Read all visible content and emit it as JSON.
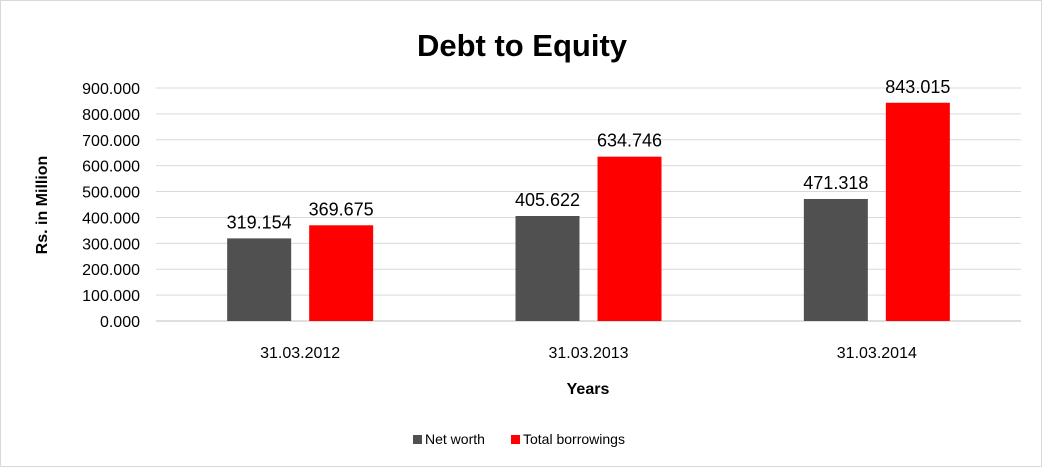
{
  "chart_data": {
    "type": "bar",
    "title": "Debt to Equity",
    "xlabel": "Years",
    "ylabel": "Rs. in Million",
    "categories": [
      "31.03.2012",
      "31.03.2013",
      "31.03.2014"
    ],
    "series": [
      {
        "name": "Net worth",
        "color": "#505050",
        "values": [
          319.154,
          405.622,
          471.318
        ]
      },
      {
        "name": "Total borrowings",
        "color": "#ff0000",
        "values": [
          369.675,
          634.746,
          843.015
        ]
      }
    ],
    "yticks": [
      "0.000",
      "100.000",
      "200.000",
      "300.000",
      "400.000",
      "500.000",
      "600.000",
      "700.000",
      "800.000",
      "900.000"
    ],
    "data_labels": [
      [
        "319.154",
        "405.622",
        "471.318"
      ],
      [
        "369.675",
        "634.746",
        "843.015"
      ]
    ],
    "ylim": [
      0,
      900
    ],
    "grid": true,
    "legend_position": "bottom"
  }
}
